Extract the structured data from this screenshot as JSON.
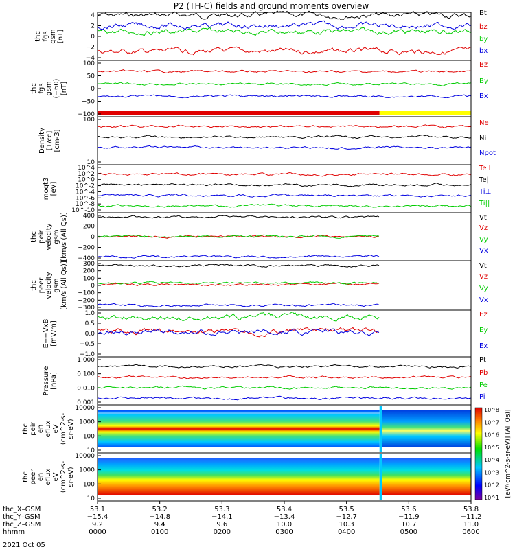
{
  "title": "P2 (TH-C) fields and ground moments overview",
  "date_label": "2021 Oct 05",
  "colorbar_label": "[eV/(cm^2-s-sr-eV)] (All Qs)]",
  "colorbar_ticks": [
    "10^8",
    "10^7",
    "10^6",
    "10^5",
    "10^4",
    "10^3",
    "10^2",
    "10^1"
  ],
  "colors": {
    "black": "#000000",
    "red": "#e00000",
    "green": "#00cc00",
    "blue": "#0000e0",
    "yellow": "#ffff00"
  },
  "xaxis": {
    "rows": [
      {
        "label": "thc_X–GSM",
        "values": [
          "53.1",
          "53.2",
          "53.3",
          "53.4",
          "53.5",
          "53.6",
          "53.8"
        ]
      },
      {
        "label": "thc_Y–GSM",
        "values": [
          "−15.4",
          "−14.8",
          "−14.1",
          "−13.4",
          "−12.7",
          "−11.9",
          "−11.2"
        ]
      },
      {
        "label": "thc_Z–GSM",
        "values": [
          "9.2",
          "9.4",
          "9.6",
          "10.0",
          "10.3",
          "10.7",
          "11.0"
        ]
      },
      {
        "label": "hhmm",
        "values": [
          "0000",
          "0100",
          "0200",
          "0300",
          "0400",
          "0500",
          "0600"
        ]
      }
    ]
  },
  "chart_data": [
    {
      "type": "line",
      "ylabel": [
        "thc",
        "fgs",
        "gsm",
        "[nT]"
      ],
      "yticks": [
        "4",
        "2",
        "0",
        "−2",
        "−4"
      ],
      "ylim": [
        -4,
        4
      ],
      "series": [
        {
          "name": "Bt",
          "color": "black",
          "level": 3.5
        },
        {
          "name": "bz",
          "color": "red",
          "level": -2.5
        },
        {
          "name": "by",
          "color": "green",
          "level": 0.8
        },
        {
          "name": "bx",
          "color": "blue",
          "level": 1.8
        }
      ]
    },
    {
      "type": "line",
      "ylabel": [
        "thc",
        "fgs",
        "gsm",
        "(−60)",
        "[nT]"
      ],
      "yticks": [
        "100",
        "50",
        "0",
        "−50",
        "−100"
      ],
      "ylim": [
        -125,
        100
      ],
      "series": [
        {
          "name": "Bz",
          "color": "red"
        },
        {
          "name": "By",
          "color": "green"
        },
        {
          "name": "Bx",
          "color": "blue"
        }
      ]
    },
    {
      "type": "line",
      "ylabel": [
        "Density",
        "[1/cc]",
        "[cm-3]"
      ],
      "yticks": [
        "100",
        "10"
      ],
      "log": true,
      "series": [
        {
          "name": "Ne",
          "color": "red"
        },
        {
          "name": "Ni",
          "color": "black"
        },
        {
          "name": "Npot",
          "color": "blue"
        }
      ]
    },
    {
      "type": "line",
      "ylabel": [
        "moqt3",
        "[eV]"
      ],
      "yticks": [
        "10^4",
        "10^2",
        "10^0",
        "10^-2",
        "10^-4",
        "10^-6",
        "10^-8",
        "10^-10"
      ],
      "log": true,
      "series": [
        {
          "name": "Te⊥",
          "color": "red"
        },
        {
          "name": "Te||",
          "color": "black"
        },
        {
          "name": "Ti⊥",
          "color": "blue"
        },
        {
          "name": "Ti||",
          "color": "green"
        }
      ]
    },
    {
      "type": "line",
      "ylabel": [
        "thc",
        "peir",
        "velocity",
        "gsm",
        "[km/s (All Qs)]"
      ],
      "yticks": [
        "400",
        "200",
        "0",
        "−200",
        "−400"
      ],
      "ylim": [
        -400,
        400
      ],
      "series": [
        {
          "name": "Vt",
          "color": "black",
          "level": 330
        },
        {
          "name": "Vz",
          "color": "red",
          "level": 0
        },
        {
          "name": "Vy",
          "color": "green",
          "level": 5
        },
        {
          "name": "Vx",
          "color": "blue",
          "level": -330
        }
      ]
    },
    {
      "type": "line",
      "ylabel": [
        "thc",
        "peer",
        "velocity",
        "gsm",
        "[km/s (All Qs)]"
      ],
      "yticks": [
        "300",
        "200",
        "100",
        "0",
        "−100",
        "−200",
        "−300"
      ],
      "ylim": [
        -300,
        300
      ],
      "series": [
        {
          "name": "Vt",
          "color": "black",
          "level": 240
        },
        {
          "name": "Vz",
          "color": "red",
          "level": 10
        },
        {
          "name": "Vy",
          "color": "green",
          "level": 30
        },
        {
          "name": "Vx",
          "color": "blue",
          "level": -240
        }
      ]
    },
    {
      "type": "line",
      "ylabel": [
        "E=−VxB",
        "[mV/m]"
      ],
      "yticks": [
        "1.0",
        "0.5",
        "0.0",
        "−0.5",
        "−1.0"
      ],
      "ylim": [
        -1,
        1
      ],
      "series": [
        {
          "name": "Ez",
          "color": "red",
          "level": 0.1
        },
        {
          "name": "Ey",
          "color": "green",
          "level": 0.7
        },
        {
          "name": "Ex",
          "color": "blue",
          "level": 0.05
        }
      ]
    },
    {
      "type": "line",
      "ylabel": [
        "Pressure",
        "[nPa]"
      ],
      "yticks": [
        "1.000",
        "0.100",
        "0.010",
        "0.001"
      ],
      "log": true,
      "series": [
        {
          "name": "Pt",
          "color": "black"
        },
        {
          "name": "Pb",
          "color": "red"
        },
        {
          "name": "Pe",
          "color": "green"
        },
        {
          "name": "Pi",
          "color": "blue"
        }
      ]
    },
    {
      "type": "heatmap",
      "ylabel": [
        "thc",
        "peir",
        "en",
        "eflux",
        "eV",
        "(cm^2-s-",
        "sr-eV)"
      ],
      "yticks": [
        "10000",
        "1000",
        "100",
        "10"
      ]
    },
    {
      "type": "heatmap",
      "ylabel": [
        "thc",
        "peer",
        "en",
        "eflux",
        "eV",
        "(cm^2-s-",
        "sr-eV)"
      ],
      "yticks": [
        "10000",
        "1000",
        "100",
        "10"
      ]
    }
  ]
}
